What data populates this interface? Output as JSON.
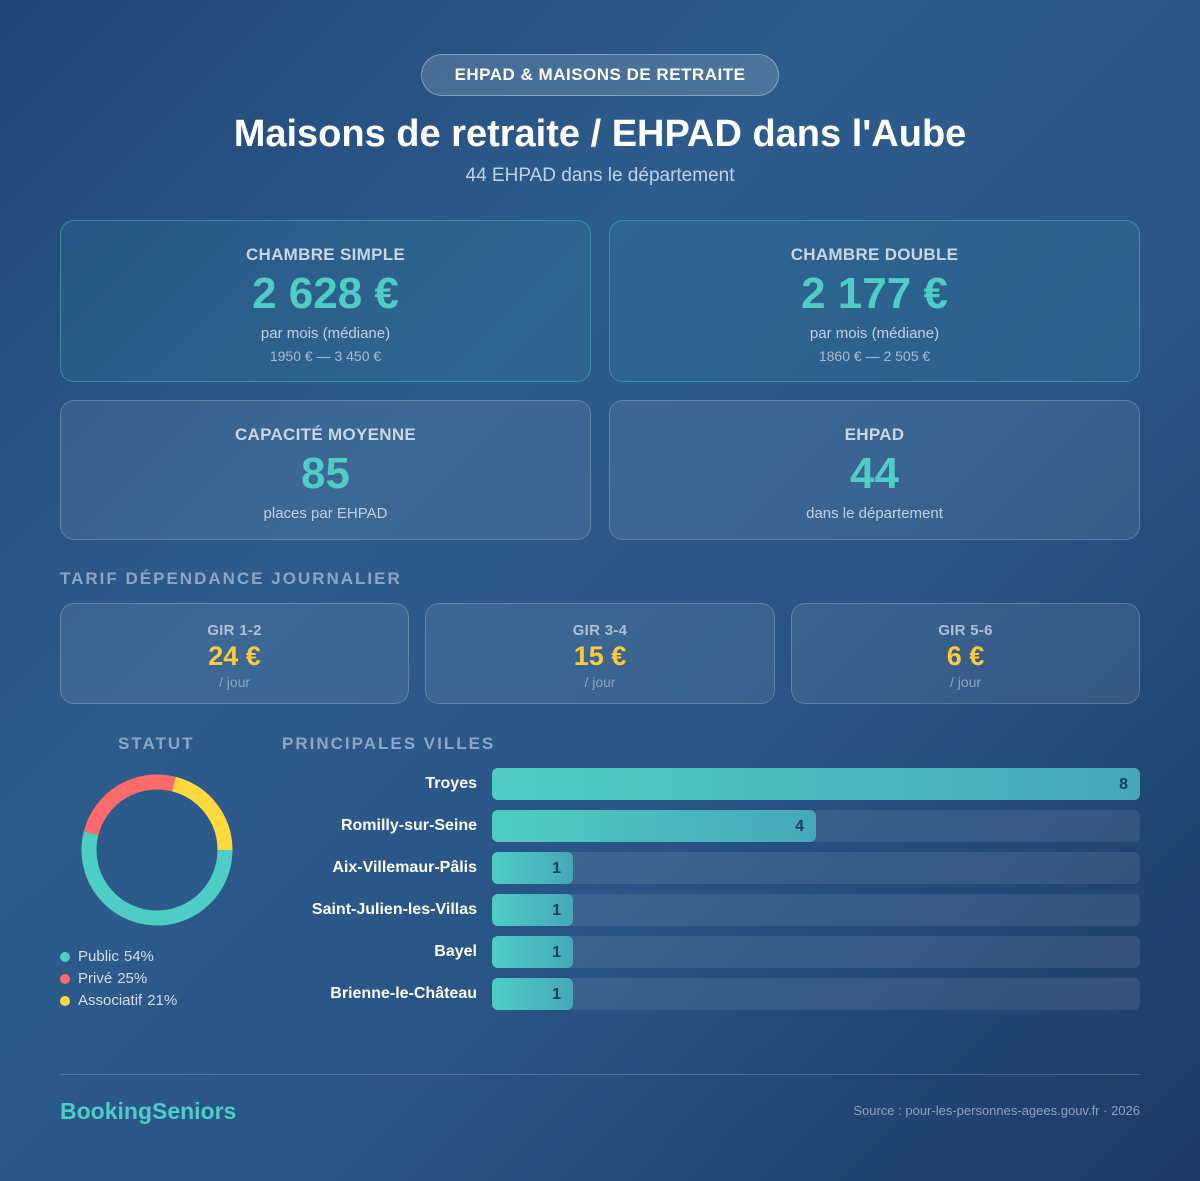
{
  "badge": "EHPAD & MAISONS DE RETRAITE",
  "title": "Maisons de retraite / EHPAD dans l'Aube",
  "subtitle": "44 EHPAD dans le département",
  "price_cards": [
    {
      "label": "CHAMBRE SIMPLE",
      "value": "2 628 €",
      "note": "par mois (médiane)",
      "range": "1950 € — 3 450 €"
    },
    {
      "label": "CHAMBRE DOUBLE",
      "value": "2 177 €",
      "note": "par mois (médiane)",
      "range": "1860 € — 2 505 €"
    }
  ],
  "stat_cards": [
    {
      "label": "CAPACITÉ MOYENNE",
      "value": "85",
      "note": "places par EHPAD"
    },
    {
      "label": "EHPAD",
      "value": "44",
      "note": "dans le département"
    }
  ],
  "gir_title": "TARIF DÉPENDANCE JOURNALIER",
  "gir_cards": [
    {
      "label": "GIR 1-2",
      "value": "24 €",
      "unit": "/ jour"
    },
    {
      "label": "GIR 3-4",
      "value": "15 €",
      "unit": "/ jour"
    },
    {
      "label": "GIR 5-6",
      "value": "6 €",
      "unit": "/ jour"
    }
  ],
  "chart_data": [
    {
      "type": "pie",
      "title": "STATUT",
      "categories": [
        "Public",
        "Privé",
        "Associatif"
      ],
      "values": [
        54,
        25,
        21
      ],
      "value_labels": [
        "54%",
        "25%",
        "21%"
      ],
      "colors": [
        "#4ecdc4",
        "#ff6b6b",
        "#ffd93d"
      ]
    },
    {
      "type": "bar",
      "title": "PRINCIPALES VILLES",
      "categories": [
        "Troyes",
        "Romilly-sur-Seine",
        "Aix-Villemaur-Pâlis",
        "Saint-Julien-les-Villas",
        "Bayel",
        "Brienne-le-Château"
      ],
      "values": [
        8,
        4,
        1,
        1,
        1,
        1
      ],
      "xlim": [
        0,
        8
      ],
      "color": "#4ecdc4"
    }
  ],
  "footer": {
    "brand": "BookingSeniors",
    "source": "Source : pour-les-personnes-agees.gouv.fr · 2026"
  }
}
